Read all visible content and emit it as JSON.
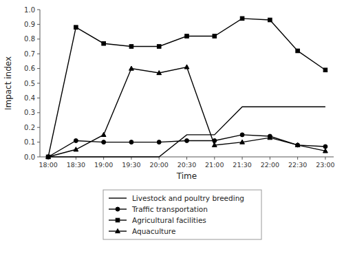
{
  "chart_data": {
    "type": "line",
    "xlabel": "Time",
    "ylabel": "Impact index",
    "categories": [
      "18:00",
      "18:30",
      "19:00",
      "19:30",
      "20:00",
      "20:30",
      "21:00",
      "21:30",
      "22:00",
      "22:30",
      "23:00"
    ],
    "series": [
      {
        "name": "Livestock and poultry breeding",
        "color": "#000000",
        "marker": "none",
        "line_style": "solid",
        "values": [
          0.0,
          0.0,
          0.0,
          0.0,
          0.0,
          0.15,
          0.15,
          0.34,
          0.34,
          0.34,
          0.34
        ]
      },
      {
        "name": "Traffic transportation",
        "color": "#000000",
        "marker": "circle",
        "line_style": "solid",
        "values": [
          0.0,
          0.11,
          0.1,
          0.1,
          0.1,
          0.11,
          0.11,
          0.15,
          0.14,
          0.08,
          0.07
        ]
      },
      {
        "name": "Agricultural facilities",
        "color": "#000000",
        "marker": "square",
        "line_style": "solid",
        "values": [
          0.0,
          0.88,
          0.77,
          0.75,
          0.75,
          0.82,
          0.82,
          0.94,
          0.93,
          0.72,
          0.59
        ]
      },
      {
        "name": "Aquaculture",
        "color": "#000000",
        "marker": "triangle",
        "line_style": "solid",
        "values": [
          0.0,
          0.05,
          0.15,
          0.6,
          0.57,
          0.61,
          0.08,
          0.1,
          0.13,
          0.08,
          0.04
        ]
      }
    ],
    "ylim": [
      0.0,
      1.0
    ],
    "yticks": [
      {
        "value": 0.0,
        "label": "0.0"
      },
      0.1,
      0.2,
      0.3,
      0.4,
      0.5,
      0.6,
      0.7,
      0.8,
      0.9,
      {
        "value": 1.0,
        "label": "1.0"
      }
    ],
    "grid": false,
    "legend": "bottom"
  }
}
